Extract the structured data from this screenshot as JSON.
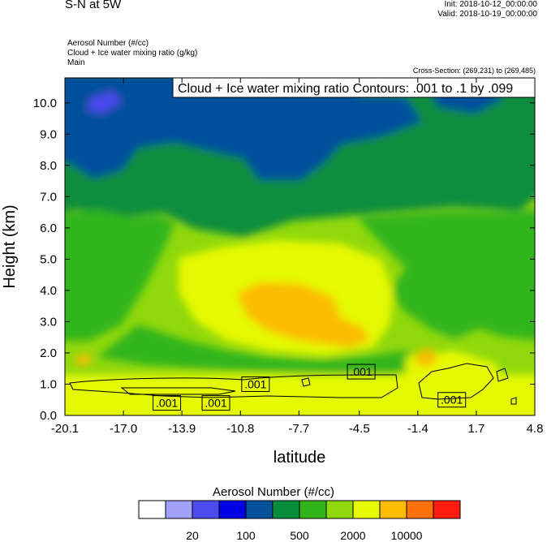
{
  "header": {
    "title": "S-N at 5W",
    "init": "Init: 2018-10-12_00:00:00",
    "valid": "Valid: 2018-10-19_00:00:00",
    "field_lines": [
      "Aerosol Number   (#/cc)",
      "Cloud + Ice water mixing ratio   (g/kg)",
      "Main"
    ],
    "cross_section": "Cross-Section: (269,231) to (269,485)"
  },
  "chart_data": {
    "type": "heatmap",
    "title": "S-N at 5W",
    "xlabel": "latitude",
    "ylabel": "Height (km)",
    "xlim": [
      -20.1,
      4.8
    ],
    "ylim": [
      0.0,
      10.8
    ],
    "x_ticks": [
      "-20.1",
      "-17.0",
      "-13.9",
      "-10.8",
      "-7.7",
      "-4.5",
      "-1.4",
      "1.7",
      "4.8"
    ],
    "y_ticks": [
      "0.0",
      "1.0",
      "2.0",
      "3.0",
      "4.0",
      "5.0",
      "6.0",
      "7.0",
      "8.0",
      "9.0",
      "10.0"
    ],
    "contour_title": "Cloud + Ice water mixing ratio Contours: .001 to .1 by .099",
    "contour_labels": [
      {
        "text": ".001",
        "lat": -14.7,
        "z": 0.4
      },
      {
        "text": ".001",
        "lat": -12.1,
        "z": 0.4
      },
      {
        "text": ".001",
        "lat": -10.0,
        "z": 1.0
      },
      {
        "text": ".001",
        "lat": -4.4,
        "z": 1.4
      },
      {
        "text": ".001",
        "lat": 0.4,
        "z": 0.5
      }
    ],
    "colorbar": {
      "title": "Aerosol Number  (#/cc)",
      "colors": [
        "#ffffff",
        "#a0a0f7",
        "#4a4aee",
        "#0000e6",
        "#06509c",
        "#078d3c",
        "#32b51a",
        "#90d80c",
        "#e5f900",
        "#fbbc02",
        "#fe7108",
        "#fe1a0e"
      ],
      "labels": [
        "20",
        "100",
        "500",
        "2000",
        "10000"
      ]
    }
  }
}
